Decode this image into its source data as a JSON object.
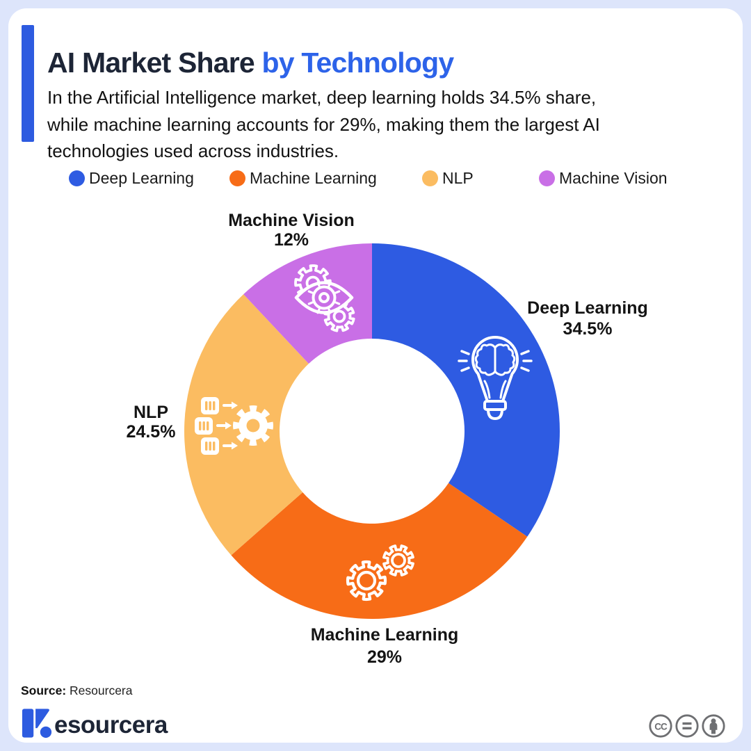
{
  "colors": {
    "background": "#DDE5FB",
    "card": "#FFFFFF",
    "accent_blue": "#2D5BE0",
    "title_accent_blue": "#2D63E9",
    "title_dark": "#1D2536",
    "body_text": "#121212",
    "chart_label_text": "#141414",
    "license_gray": "#6E6F72"
  },
  "header": {
    "title_dark": "AI Market Share",
    "title_accent": "by Technology",
    "subtitle": "In the Artificial Intelligence market, deep learning holds 34.5% share,\nwhile machine learning accounts for 29%, making them the largest AI\ntechnologies used across industries."
  },
  "chart_data": {
    "type": "pie",
    "subtype": "donut",
    "title": "AI Market Share by Technology",
    "unit": "%",
    "start_angle_deg": 0,
    "direction": "clockwise",
    "legend_position": "top",
    "slices": [
      {
        "label": "Deep Learning",
        "value": 34.5,
        "pct_label": "34.5%",
        "color": "#2E5BE2",
        "icon": "lightbulb-brain"
      },
      {
        "label": "Machine Learning",
        "value": 29,
        "pct_label": "29%",
        "color": "#F76C17",
        "icon": "gears"
      },
      {
        "label": "NLP",
        "value": 24.5,
        "pct_label": "24.5%",
        "color": "#FBBC61",
        "icon": "text-to-gear"
      },
      {
        "label": "Machine Vision",
        "value": 12,
        "pct_label": "12%",
        "color": "#C96FE6",
        "icon": "eye-gears"
      }
    ]
  },
  "footer": {
    "source_label": "Source:",
    "source_value": "Resourcera",
    "brand_wordmark": "esourcera",
    "license_icons": [
      "cc",
      "nd-equals",
      "by-person"
    ]
  }
}
